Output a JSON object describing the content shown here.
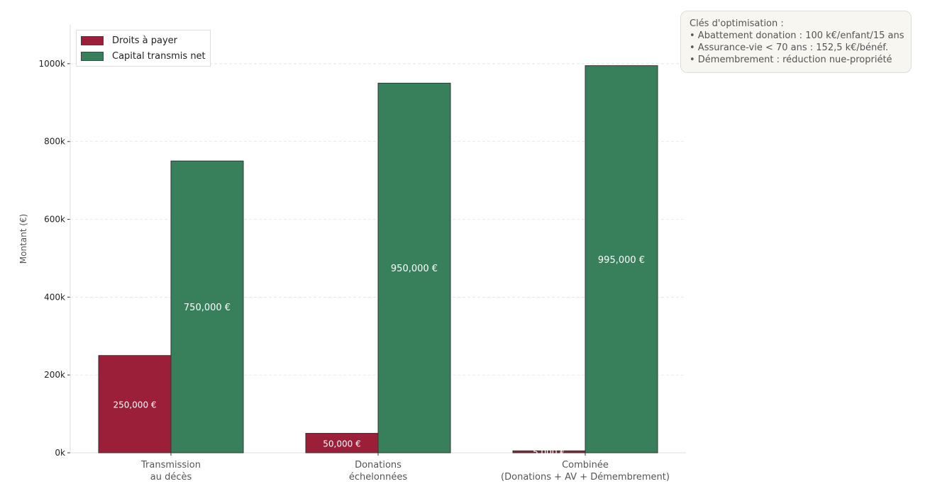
{
  "chart_data": {
    "type": "bar",
    "categories": [
      [
        "Transmission",
        "au décès"
      ],
      [
        "Donations",
        "échelonnées"
      ],
      [
        "Combinée",
        "(Donations + AV + Démembrement)"
      ]
    ],
    "series": [
      {
        "name": "Droits à payer",
        "color": "#9b1f39",
        "values": [
          250000,
          50000,
          5000
        ],
        "labels": [
          "250,000 €",
          "50,000 €",
          "5,000 €"
        ]
      },
      {
        "name": "Capital transmis net",
        "color": "#38805c",
        "values": [
          750000,
          950000,
          995000
        ],
        "labels": [
          "750,000 €",
          "950,000 €",
          "995,000 €"
        ]
      }
    ],
    "ylabel": "Montant (€)",
    "ylim": [
      0,
      1100000
    ],
    "yticks": [
      0,
      200000,
      400000,
      600000,
      800000,
      1000000
    ],
    "yticklabels": [
      "0k",
      "200k",
      "400k",
      "600k",
      "800k",
      "1000k"
    ],
    "grid": true,
    "legend": "top-left"
  },
  "note": {
    "title": "Clés d'optimisation :",
    "lines": [
      "• Abattement donation : 100 k€/enfant/15 ans",
      "• Assurance-vie < 70 ans : 152,5 k€/bénéf.",
      "• Démembrement : réduction nue-propriété"
    ]
  }
}
